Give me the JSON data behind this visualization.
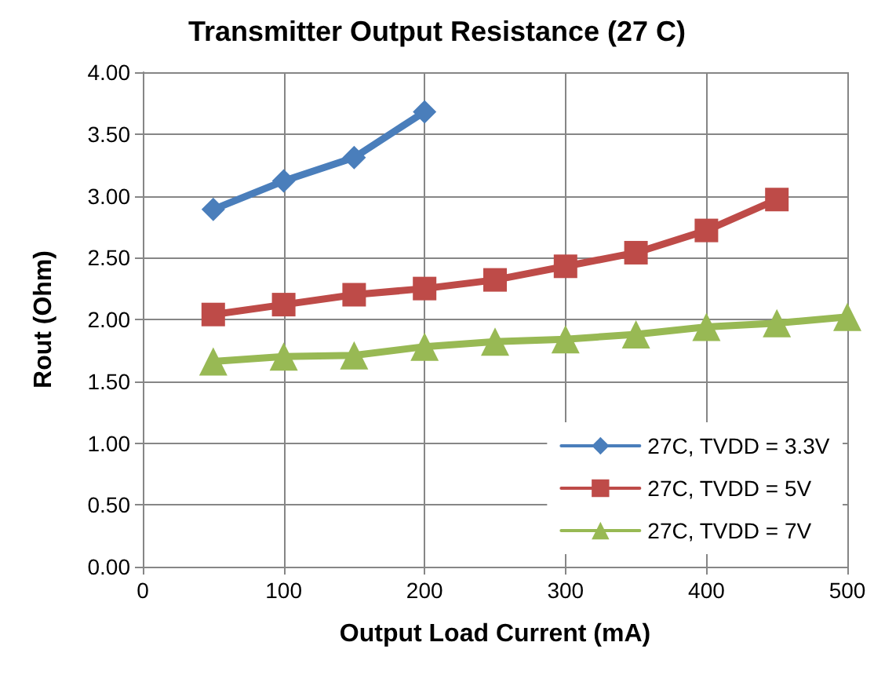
{
  "chart_data": {
    "type": "line",
    "title": "Transmitter Output Resistance (27 C)",
    "xlabel": "Output Load Current (mA)",
    "ylabel": "Rout (Ohm)",
    "xlim": [
      0,
      500
    ],
    "xticks": [
      0,
      100,
      200,
      300,
      400,
      500
    ],
    "ylim": [
      0,
      4
    ],
    "yticks": [
      {
        "value": 0,
        "label": "0.00"
      },
      {
        "value": 0.5,
        "label": "0.50"
      },
      {
        "value": 1,
        "label": "1.00"
      },
      {
        "value": 1.5,
        "label": "1.50"
      },
      {
        "value": 2,
        "label": "2.00"
      },
      {
        "value": 2.5,
        "label": "2.50"
      },
      {
        "value": 3,
        "label": "3.00"
      },
      {
        "value": 3.5,
        "label": "3.50"
      },
      {
        "value": 4,
        "label": "4.00"
      }
    ],
    "grid": true,
    "legend": "bottom right",
    "line_style": "solid",
    "series": [
      {
        "name": "27C, TVDD = 3.3V",
        "color": "#4a7ebb",
        "marker": "diamond",
        "x": [
          50,
          100,
          150,
          200
        ],
        "values": [
          2.89,
          3.12,
          3.31,
          3.68
        ]
      },
      {
        "name": "27C, TVDD = 5V",
        "color": "#be4b48",
        "marker": "square",
        "x": [
          50,
          100,
          150,
          200,
          250,
          300,
          350,
          400,
          450
        ],
        "values": [
          2.04,
          2.12,
          2.2,
          2.25,
          2.32,
          2.43,
          2.54,
          2.72,
          2.97
        ]
      },
      {
        "name": "27C, TVDD = 7V",
        "color": "#98b954",
        "marker": "triangle",
        "x": [
          50,
          100,
          150,
          200,
          250,
          300,
          350,
          400,
          450,
          500
        ],
        "values": [
          1.66,
          1.7,
          1.71,
          1.78,
          1.82,
          1.84,
          1.88,
          1.94,
          1.97,
          2.02
        ]
      }
    ]
  }
}
